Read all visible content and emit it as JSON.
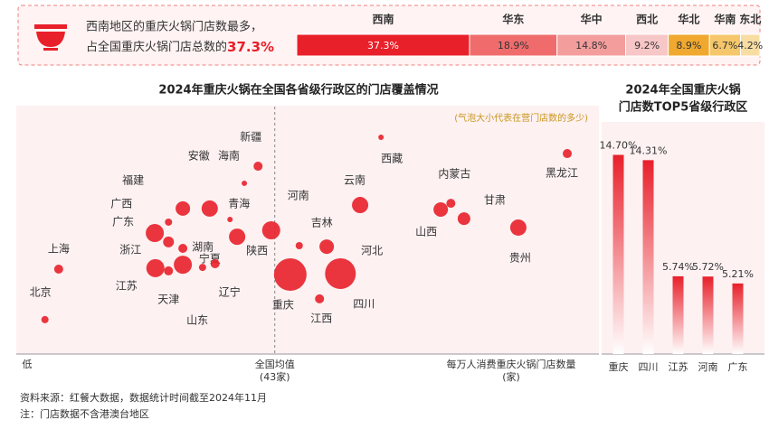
{
  "banner": {
    "line1": "西南地区的重庆火锅门店数最多，",
    "line2": "占全国重庆火锅门店总数的",
    "highlight": "37.3%"
  },
  "chart_data": [
    {
      "type": "stacked-bar",
      "categories": [
        "西南",
        "华东",
        "华中",
        "西北",
        "华北",
        "华南",
        "东北"
      ],
      "values": [
        37.3,
        18.9,
        14.8,
        9.2,
        8.9,
        6.7,
        4.2
      ],
      "value_labels": [
        "37.3%",
        "18.9%",
        "14.8%",
        "9.2%",
        "8.9%",
        "6.7%",
        "4.2%"
      ],
      "colors": [
        "#e8202a",
        "#f06c6c",
        "#f49d9d",
        "#f7c6c6",
        "#f0a82e",
        "#f5c76a",
        "#f8dda3"
      ],
      "xlim": [
        0,
        100
      ]
    },
    {
      "type": "scatter",
      "title": "2024年重庆火锅在全国各省级行政区的门店覆盖情况",
      "note": "(气泡大小代表在营门店数的多少)",
      "x_low_label": "低",
      "mean": 43,
      "mean_label": [
        "全国均值",
        "(43家)"
      ],
      "x_label": [
        "每万人消费重庆火锅门店数量",
        "(家)"
      ],
      "xlim": [
        0,
        97
      ],
      "ylim": [
        0,
        100
      ],
      "color": "#e8202a",
      "names": [
        "北京",
        "上海",
        "广西",
        "福建",
        "安徽",
        "广东",
        "浙江",
        "湖南",
        "江苏",
        "天津",
        "山东",
        "宁夏",
        "辽宁",
        "青海",
        "海南",
        "新疆",
        "陕西",
        "河南",
        "吉林",
        "河北",
        "重庆",
        "四川",
        "江西",
        "云南",
        "西藏",
        "内蒙古",
        "山西",
        "甘肃",
        "贵州",
        "黑龙江"
      ],
      "x": [
        4.5,
        6.8,
        25.2,
        27.6,
        32.1,
        22.9,
        25.2,
        27.6,
        23.0,
        25.2,
        27.6,
        30.9,
        33.0,
        35.5,
        37.9,
        40.2,
        36.7,
        42.4,
        47.1,
        51.7,
        45.6,
        54.0,
        50.5,
        57.3,
        60.8,
        72.5,
        70.8,
        74.7,
        83.8,
        92.0
      ],
      "y": [
        13.9,
        34.3,
        53.3,
        58.8,
        58.8,
        48.9,
        45.3,
        42.7,
        34.7,
        33.6,
        36.1,
        35.0,
        36.5,
        54.4,
        69.0,
        75.9,
        47.4,
        50.0,
        43.8,
        43.4,
        32.1,
        32.5,
        22.3,
        60.2,
        87.6,
        60.9,
        58.4,
        54.7,
        51.1,
        81.0
      ],
      "size": [
        4,
        5,
        4,
        8,
        9,
        10,
        6,
        5,
        10,
        5,
        10,
        4,
        5,
        3,
        3,
        5,
        9,
        10,
        4,
        8,
        18,
        17,
        5,
        9,
        3,
        5,
        8,
        7,
        9,
        5
      ]
    },
    {
      "type": "bar",
      "title": [
        "2024年全国重庆火锅",
        "门店数TOP5省级行政区"
      ],
      "categories": [
        "重庆",
        "四川",
        "江苏",
        "河南",
        "广东"
      ],
      "values": [
        14.7,
        14.31,
        5.74,
        5.72,
        5.21
      ],
      "value_labels": [
        "14.70%",
        "14.31%",
        "5.74%",
        "5.72%",
        "5.21%"
      ],
      "ylim": [
        0,
        16
      ],
      "color": "#e8202a"
    }
  ],
  "footer": {
    "source": "资料来源：红餐大数据，数据统计时间截至2024年11月",
    "note": "注：门店数据不含港澳台地区"
  }
}
